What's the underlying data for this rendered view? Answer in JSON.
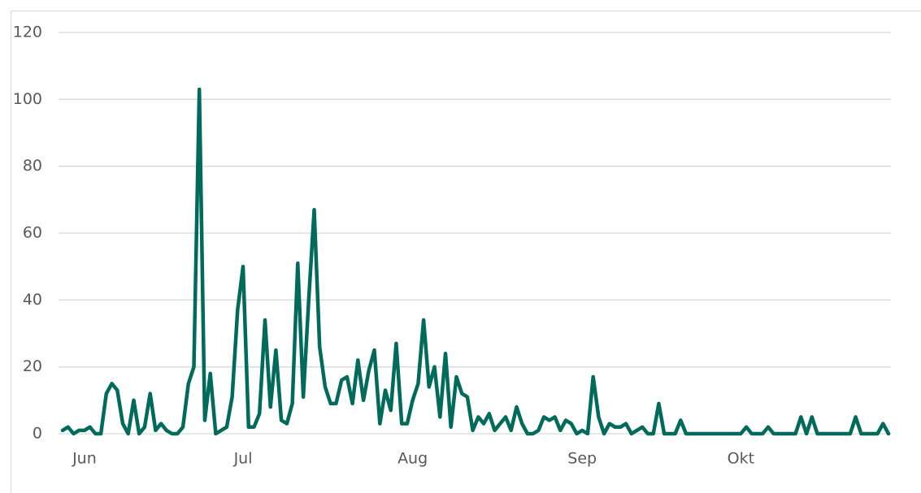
{
  "chart_data": {
    "type": "line",
    "categories": [
      null,
      null,
      null,
      null,
      "Jun",
      null,
      null,
      null,
      null,
      null,
      null,
      null,
      null,
      null,
      null,
      null,
      null,
      null,
      null,
      null,
      null,
      null,
      null,
      null,
      null,
      null,
      null,
      null,
      null,
      null,
      null,
      null,
      null,
      "Jul",
      null,
      null,
      null,
      null,
      null,
      null,
      null,
      null,
      null,
      null,
      null,
      null,
      null,
      null,
      null,
      null,
      null,
      null,
      null,
      null,
      null,
      null,
      null,
      null,
      null,
      null,
      null,
      null,
      null,
      null,
      "Aug",
      null,
      null,
      null,
      null,
      null,
      null,
      null,
      null,
      null,
      null,
      null,
      null,
      null,
      null,
      null,
      null,
      null,
      null,
      null,
      null,
      null,
      null,
      null,
      null,
      null,
      null,
      null,
      null,
      null,
      null,
      "Sep",
      null,
      null,
      null,
      null,
      null,
      null,
      null,
      null,
      null,
      null,
      null,
      null,
      null,
      null,
      null,
      null,
      null,
      null,
      null,
      null,
      null,
      null,
      null,
      null,
      null,
      null,
      null,
      null,
      "Okt",
      null,
      null,
      null,
      null,
      null,
      null,
      null,
      null,
      null,
      null,
      null,
      null,
      null,
      null,
      null,
      null,
      null,
      null,
      null,
      null,
      null,
      null,
      null,
      null,
      null,
      null,
      null
    ],
    "series": [
      {
        "color": "#006a5b",
        "values": [
          1,
          2,
          0,
          1,
          1,
          2,
          0,
          0,
          12,
          15,
          13,
          3,
          0,
          10,
          0,
          2,
          12,
          1,
          3,
          1,
          0,
          0,
          2,
          15,
          20,
          103,
          4,
          18,
          0,
          1,
          2,
          11,
          37,
          50,
          2,
          2,
          6,
          34,
          8,
          25,
          4,
          3,
          9,
          51,
          11,
          40,
          67,
          26,
          14,
          9,
          9,
          16,
          17,
          9,
          22,
          10,
          19,
          25,
          3,
          13,
          7,
          27,
          3,
          3,
          10,
          15,
          34,
          14,
          20,
          5,
          24,
          2,
          17,
          12,
          11,
          1,
          5,
          3,
          6,
          1,
          3,
          5,
          1,
          8,
          3,
          0,
          0,
          1,
          5,
          4,
          5,
          1,
          4,
          3,
          0,
          1,
          0,
          17,
          5,
          0,
          3,
          2,
          2,
          3,
          0,
          1,
          2,
          0,
          0,
          9,
          0,
          0,
          0,
          4,
          0,
          0,
          0,
          0,
          0,
          0,
          0,
          0,
          0,
          0,
          0,
          2,
          0,
          0,
          0,
          2,
          0,
          0,
          0,
          0,
          0,
          5,
          0,
          5,
          0,
          0,
          0,
          0,
          0,
          0,
          0,
          5,
          0,
          0,
          0,
          0,
          3,
          0
        ]
      }
    ],
    "ylim": [
      0,
      120
    ],
    "yticks": [
      0,
      20,
      40,
      60,
      80,
      100,
      120
    ],
    "grid": true
  }
}
